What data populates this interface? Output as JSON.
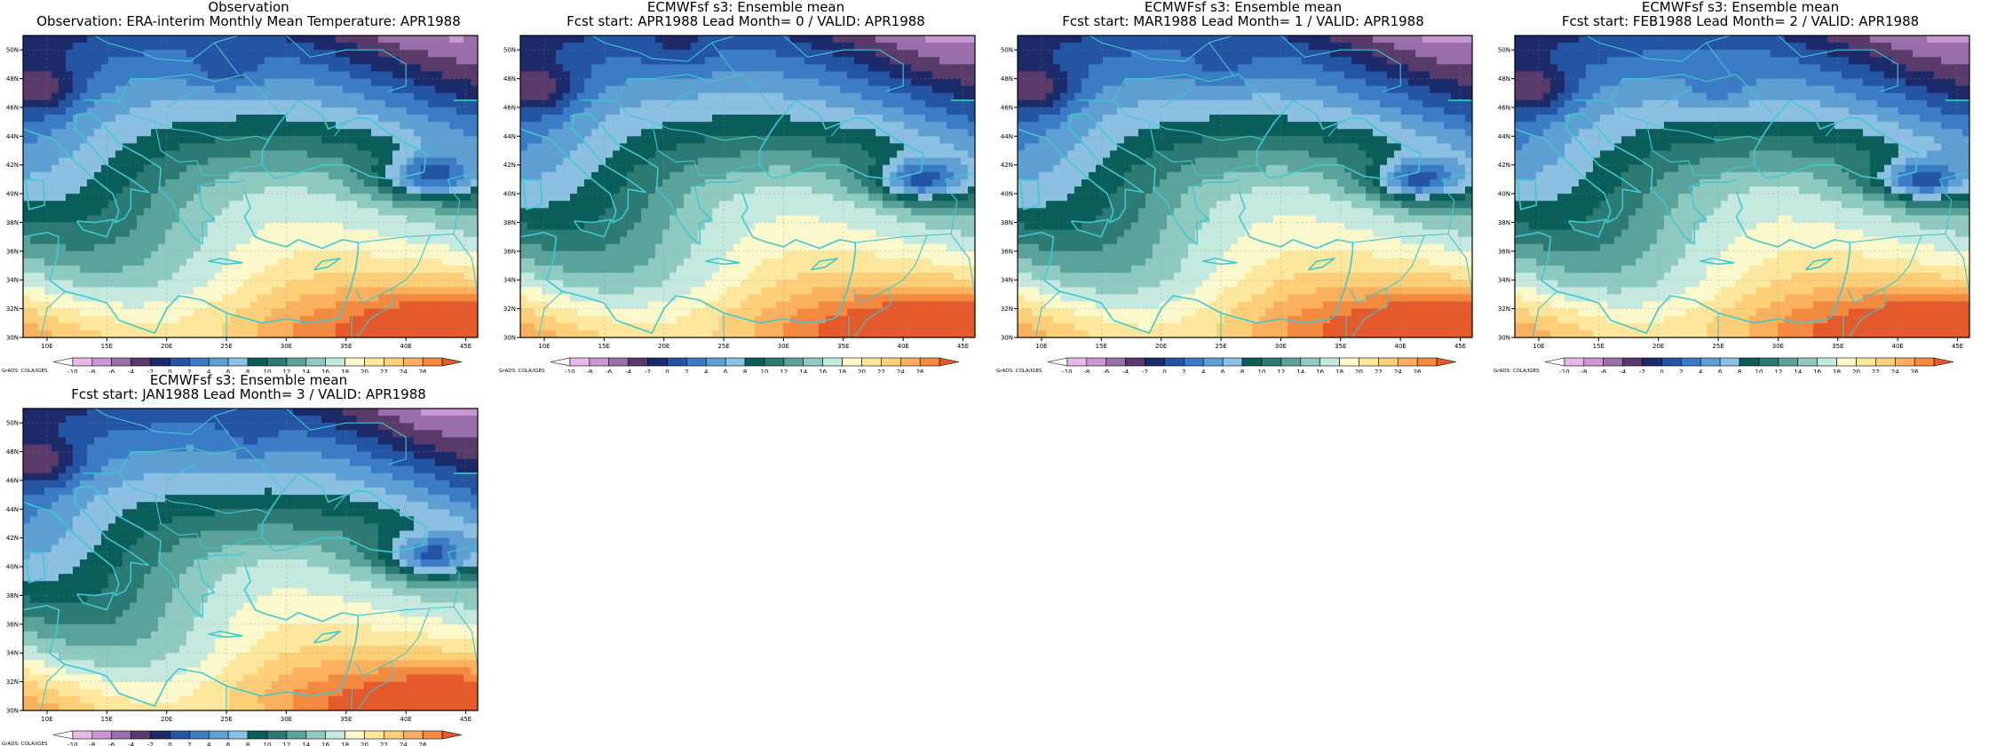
{
  "panels": [
    {
      "title1": "Observation",
      "title2": "Observation: ERA-interim Monthly Mean Temperature: APR1988",
      "field": {
        "warm": [
          0.3,
          0.9,
          0.55
        ],
        "north": [
          0.4,
          0.25
        ],
        "blobs": [
          [
            0.05,
            0.18,
            0.9
          ],
          [
            0.45,
            0.12,
            0.5
          ],
          [
            0.9,
            0.45,
            1.0
          ]
        ]
      }
    },
    {
      "title1": "ECMWFsf s3: Ensemble mean",
      "title2": "Fcst start: APR1988   Lead Month= 0 / VALID: APR1988",
      "field": {
        "warm": [
          0.35,
          1.0,
          0.5
        ],
        "north": [
          0.45,
          0.3
        ],
        "blobs": [
          [
            0.05,
            0.18,
            0.9
          ],
          [
            0.35,
            0.05,
            0.4
          ],
          [
            0.88,
            0.48,
            1.0
          ]
        ]
      }
    },
    {
      "title1": "ECMWFsf s3: Ensemble mean",
      "title2": "Fcst start: MAR1988   Lead Month= 1 / VALID: APR1988",
      "field": {
        "warm": [
          0.3,
          1.0,
          0.5
        ],
        "north": [
          0.45,
          0.3
        ],
        "blobs": [
          [
            0.05,
            0.18,
            0.9
          ],
          [
            0.45,
            0.1,
            0.4
          ],
          [
            0.88,
            0.48,
            1.0
          ]
        ]
      }
    },
    {
      "title1": "ECMWFsf s3: Ensemble mean",
      "title2": "Fcst start: FEB1988   Lead Month= 2 / VALID: APR1988",
      "field": {
        "warm": [
          0.35,
          0.95,
          0.45
        ],
        "north": [
          0.42,
          0.3
        ],
        "blobs": [
          [
            0.05,
            0.18,
            0.9
          ],
          [
            0.45,
            0.18,
            0.4
          ],
          [
            0.9,
            0.48,
            1.0
          ]
        ]
      }
    },
    {
      "title1": "ECMWFsf s3: Ensemble mean",
      "title2": "Fcst start: JAN1988   Lead Month= 3 / VALID: APR1988",
      "field": {
        "warm": [
          0.3,
          0.85,
          0.45
        ],
        "north": [
          0.45,
          0.35
        ],
        "blobs": [
          [
            0.05,
            0.18,
            0.9
          ],
          [
            0.5,
            0.1,
            0.3
          ],
          [
            0.9,
            0.5,
            1.0
          ]
        ]
      }
    }
  ],
  "map": {
    "lon_range": [
      8,
      46
    ],
    "lat_range": [
      30,
      51
    ],
    "lon_ticks": [
      "10E",
      "15E",
      "20E",
      "25E",
      "30E",
      "35E",
      "40E",
      "45E"
    ],
    "lat_ticks": [
      "30N",
      "32N",
      "34N",
      "36N",
      "38N",
      "40N",
      "42N",
      "44N",
      "46N",
      "48N",
      "50N"
    ]
  },
  "colorbar": {
    "labels": [
      "-10",
      "-8",
      "-6",
      "-4",
      "-2",
      "0",
      "2",
      "4",
      "6",
      "8",
      "10",
      "12",
      "14",
      "16",
      "18",
      "20",
      "22",
      "24",
      "26"
    ],
    "colors": [
      "#ffffff",
      "#e6b8e6",
      "#c896d2",
      "#9a6eaa",
      "#5a3a6a",
      "#1c2a6a",
      "#2454a4",
      "#3a7cc6",
      "#5e9fd4",
      "#8cc0e2",
      "#0a5e5a",
      "#2c7a74",
      "#5aa39a",
      "#8fcac0",
      "#c5e8df",
      "#fbf8cb",
      "#fde79c",
      "#fdcf78",
      "#fab05c",
      "#f48a40",
      "#e45a2a"
    ],
    "credit": "GrADS: COLA/IGES"
  },
  "style": {
    "coast": "#40c8d0",
    "grid": "#888888"
  }
}
